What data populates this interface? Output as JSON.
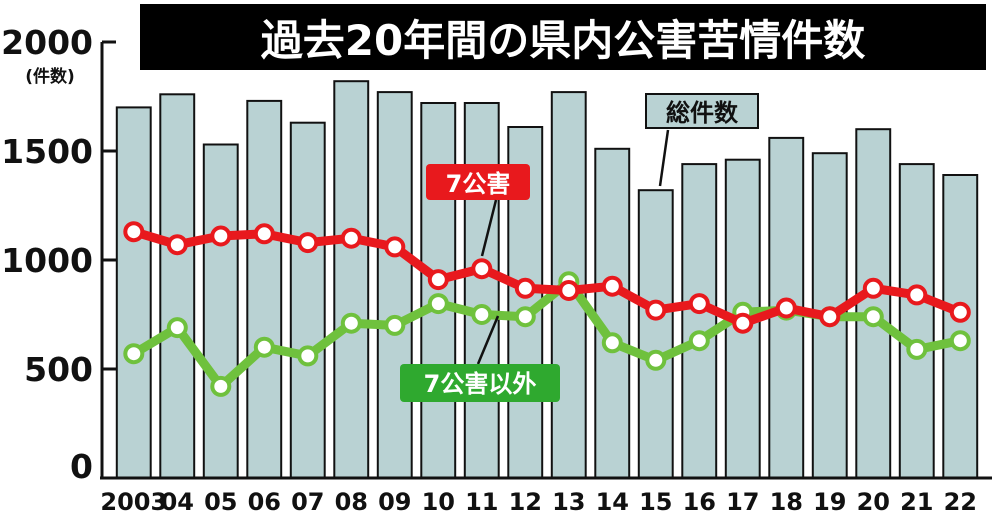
{
  "chart_data": {
    "type": "bar",
    "title": "過去20年間の県内公害苦情件数",
    "y_unit": "(件数)",
    "ylim": [
      0,
      2000
    ],
    "y_ticks": [
      "0",
      "500",
      "1000",
      "1500",
      "2000"
    ],
    "categories": [
      "2003",
      "04",
      "05",
      "06",
      "07",
      "08",
      "09",
      "10",
      "11",
      "12",
      "13",
      "14",
      "15",
      "16",
      "17",
      "18",
      "19",
      "20",
      "21",
      "22"
    ],
    "series": [
      {
        "name": "総件数",
        "type": "bar",
        "color": "#b9d2d3",
        "values": [
          1700,
          1760,
          1530,
          1730,
          1630,
          1820,
          1770,
          1720,
          1720,
          1610,
          1770,
          1510,
          1320,
          1440,
          1460,
          1560,
          1490,
          1600,
          1440,
          1390
        ]
      },
      {
        "name": "7公害",
        "type": "line",
        "color": "#e8191d",
        "label_color": "#e8191d",
        "values": [
          1130,
          1070,
          1110,
          1120,
          1080,
          1100,
          1060,
          910,
          960,
          870,
          860,
          880,
          770,
          800,
          710,
          780,
          740,
          870,
          840,
          760
        ]
      },
      {
        "name": "7公害以外",
        "type": "line",
        "color": "#6fc13d",
        "label_color": "#2fa92f",
        "values": [
          570,
          690,
          420,
          600,
          560,
          710,
          700,
          800,
          750,
          740,
          900,
          620,
          540,
          630,
          760,
          770,
          740,
          740,
          590,
          630
        ]
      }
    ],
    "grid": false,
    "legend": "inline-labels"
  }
}
